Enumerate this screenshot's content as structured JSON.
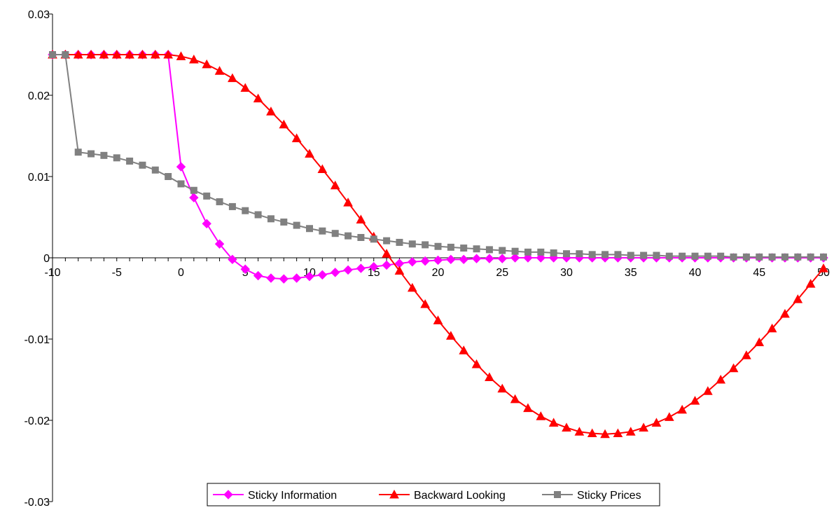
{
  "chart_data": {
    "type": "line",
    "title": "",
    "xlabel": "",
    "ylabel": "",
    "xlim": [
      -10,
      50
    ],
    "ylim": [
      -0.03,
      0.03
    ],
    "x_ticks": [
      -10,
      -5,
      0,
      5,
      10,
      15,
      20,
      25,
      30,
      35,
      40,
      45,
      50
    ],
    "x_tick_labels": [
      "-10",
      "-5",
      "0",
      "5",
      "10",
      "15",
      "20",
      "25",
      "30",
      "35",
      "40",
      "45",
      "50"
    ],
    "y_ticks": [
      -0.03,
      -0.02,
      -0.01,
      0,
      0.01,
      0.02,
      0.03
    ],
    "y_tick_labels": [
      "-0.03",
      "-0.02",
      "-0.01",
      "0",
      "0.01",
      "0.02",
      "0.03"
    ],
    "grid": false,
    "legend_position": "bottom-center",
    "x": [
      -10,
      -9,
      -8,
      -7,
      -6,
      -5,
      -4,
      -3,
      -2,
      -1,
      0,
      1,
      2,
      3,
      4,
      5,
      6,
      7,
      8,
      9,
      10,
      11,
      12,
      13,
      14,
      15,
      16,
      17,
      18,
      19,
      20,
      21,
      22,
      23,
      24,
      25,
      26,
      27,
      28,
      29,
      30,
      31,
      32,
      33,
      34,
      35,
      36,
      37,
      38,
      39,
      40,
      41,
      42,
      43,
      44,
      45,
      46,
      47,
      48,
      49,
      50
    ],
    "series": [
      {
        "name": "Sticky Information",
        "color": "#ff00ff",
        "marker": "diamond",
        "values": [
          0.025,
          0.025,
          0.025,
          0.025,
          0.025,
          0.025,
          0.025,
          0.025,
          0.025,
          0.025,
          0.0112,
          0.0074,
          0.0042,
          0.0017,
          -0.0002,
          -0.0014,
          -0.0022,
          -0.0025,
          -0.0026,
          -0.0025,
          -0.0023,
          -0.0021,
          -0.0018,
          -0.0015,
          -0.0013,
          -0.0011,
          -0.0009,
          -0.0007,
          -0.0005,
          -0.0004,
          -0.0003,
          -0.0002,
          -0.0002,
          -0.0001,
          -0.0001,
          -0.0001,
          0,
          0,
          0,
          0,
          0,
          0,
          0,
          0,
          0,
          0,
          0,
          0,
          0,
          0,
          0,
          0,
          0,
          0,
          0,
          0,
          0,
          0,
          0,
          0,
          0
        ]
      },
      {
        "name": "Backward Looking",
        "color": "#ff0000",
        "marker": "triangle",
        "values": [
          0.025,
          0.025,
          0.025,
          0.025,
          0.025,
          0.025,
          0.025,
          0.025,
          0.025,
          0.025,
          0.0248,
          0.0244,
          0.0238,
          0.023,
          0.0221,
          0.0209,
          0.0196,
          0.018,
          0.0164,
          0.0147,
          0.0128,
          0.0109,
          0.0089,
          0.0068,
          0.0047,
          0.0026,
          0.0005,
          -0.0016,
          -0.0037,
          -0.0057,
          -0.0077,
          -0.0096,
          -0.0114,
          -0.0131,
          -0.0147,
          -0.0161,
          -0.0174,
          -0.0185,
          -0.0195,
          -0.0203,
          -0.0209,
          -0.0214,
          -0.0216,
          -0.0217,
          -0.0216,
          -0.0214,
          -0.0209,
          -0.0203,
          -0.0196,
          -0.0187,
          -0.0176,
          -0.0164,
          -0.015,
          -0.0136,
          -0.012,
          -0.0104,
          -0.0087,
          -0.0069,
          -0.0051,
          -0.0032,
          -0.0013
        ]
      },
      {
        "name": "Sticky Prices",
        "color": "#808080",
        "marker": "square",
        "values": [
          0.025,
          0.025,
          0.013,
          0.0128,
          0.0126,
          0.0123,
          0.0119,
          0.0114,
          0.0108,
          0.01,
          0.0091,
          0.0083,
          0.0076,
          0.0069,
          0.0063,
          0.0058,
          0.0053,
          0.0048,
          0.0044,
          0.004,
          0.0036,
          0.0033,
          0.003,
          0.0027,
          0.0025,
          0.0023,
          0.0021,
          0.0019,
          0.0017,
          0.0016,
          0.0014,
          0.0013,
          0.0012,
          0.0011,
          0.001,
          0.0009,
          0.0008,
          0.0007,
          0.0007,
          0.0006,
          0.0005,
          0.0005,
          0.0004,
          0.0004,
          0.0004,
          0.0003,
          0.0003,
          0.0003,
          0.0002,
          0.0002,
          0.0002,
          0.0002,
          0.0002,
          0.0001,
          0.0001,
          0.0001,
          0.0001,
          0.0001,
          0.0001,
          0.0001,
          0.0001
        ]
      }
    ]
  }
}
